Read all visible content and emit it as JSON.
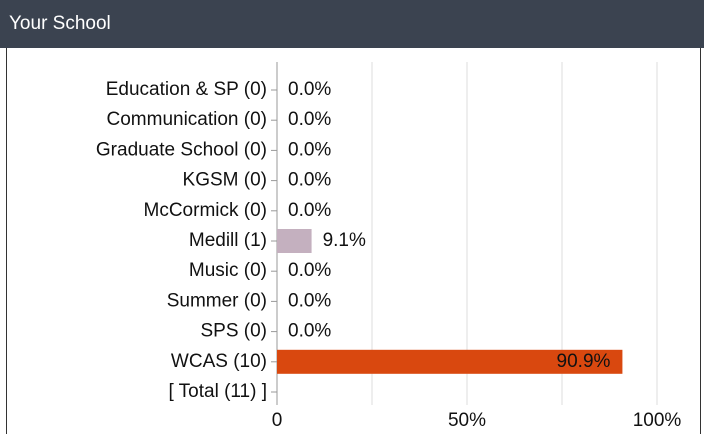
{
  "chart_data": {
    "type": "hbar",
    "title": "Your School",
    "categories": [
      "Education & SP (0)",
      "Communication (0)",
      "Graduate School (0)",
      "KGSM (0)",
      "McCormick (0)",
      "Medill (1)",
      "Music (0)",
      "Summer (0)",
      "SPS (0)",
      "WCAS (10)",
      "[ Total (11) ]"
    ],
    "values": [
      0,
      0,
      0,
      0,
      0,
      9.1,
      0,
      0,
      0,
      90.9,
      null
    ],
    "value_labels": [
      "0.0%",
      "0.0%",
      "0.0%",
      "0.0%",
      "0.0%",
      "9.1%",
      "0.0%",
      "0.0%",
      "0.0%",
      "90.9%",
      null
    ],
    "colors": [
      "#6a8caf",
      "#8fb07a",
      "#e0b050",
      "#7a6aa8",
      "#5aa0a0",
      "#c4b0bf",
      "#a07050",
      "#d08090",
      "#909090",
      "#d9480f",
      null
    ],
    "xlim": [
      0,
      100
    ],
    "xticks": [
      0,
      {
        "value": 50,
        "label": "50%"
      },
      {
        "value": 100,
        "label": "100%"
      }
    ],
    "minor_xticks": [
      25,
      75
    ],
    "grid": true
  }
}
